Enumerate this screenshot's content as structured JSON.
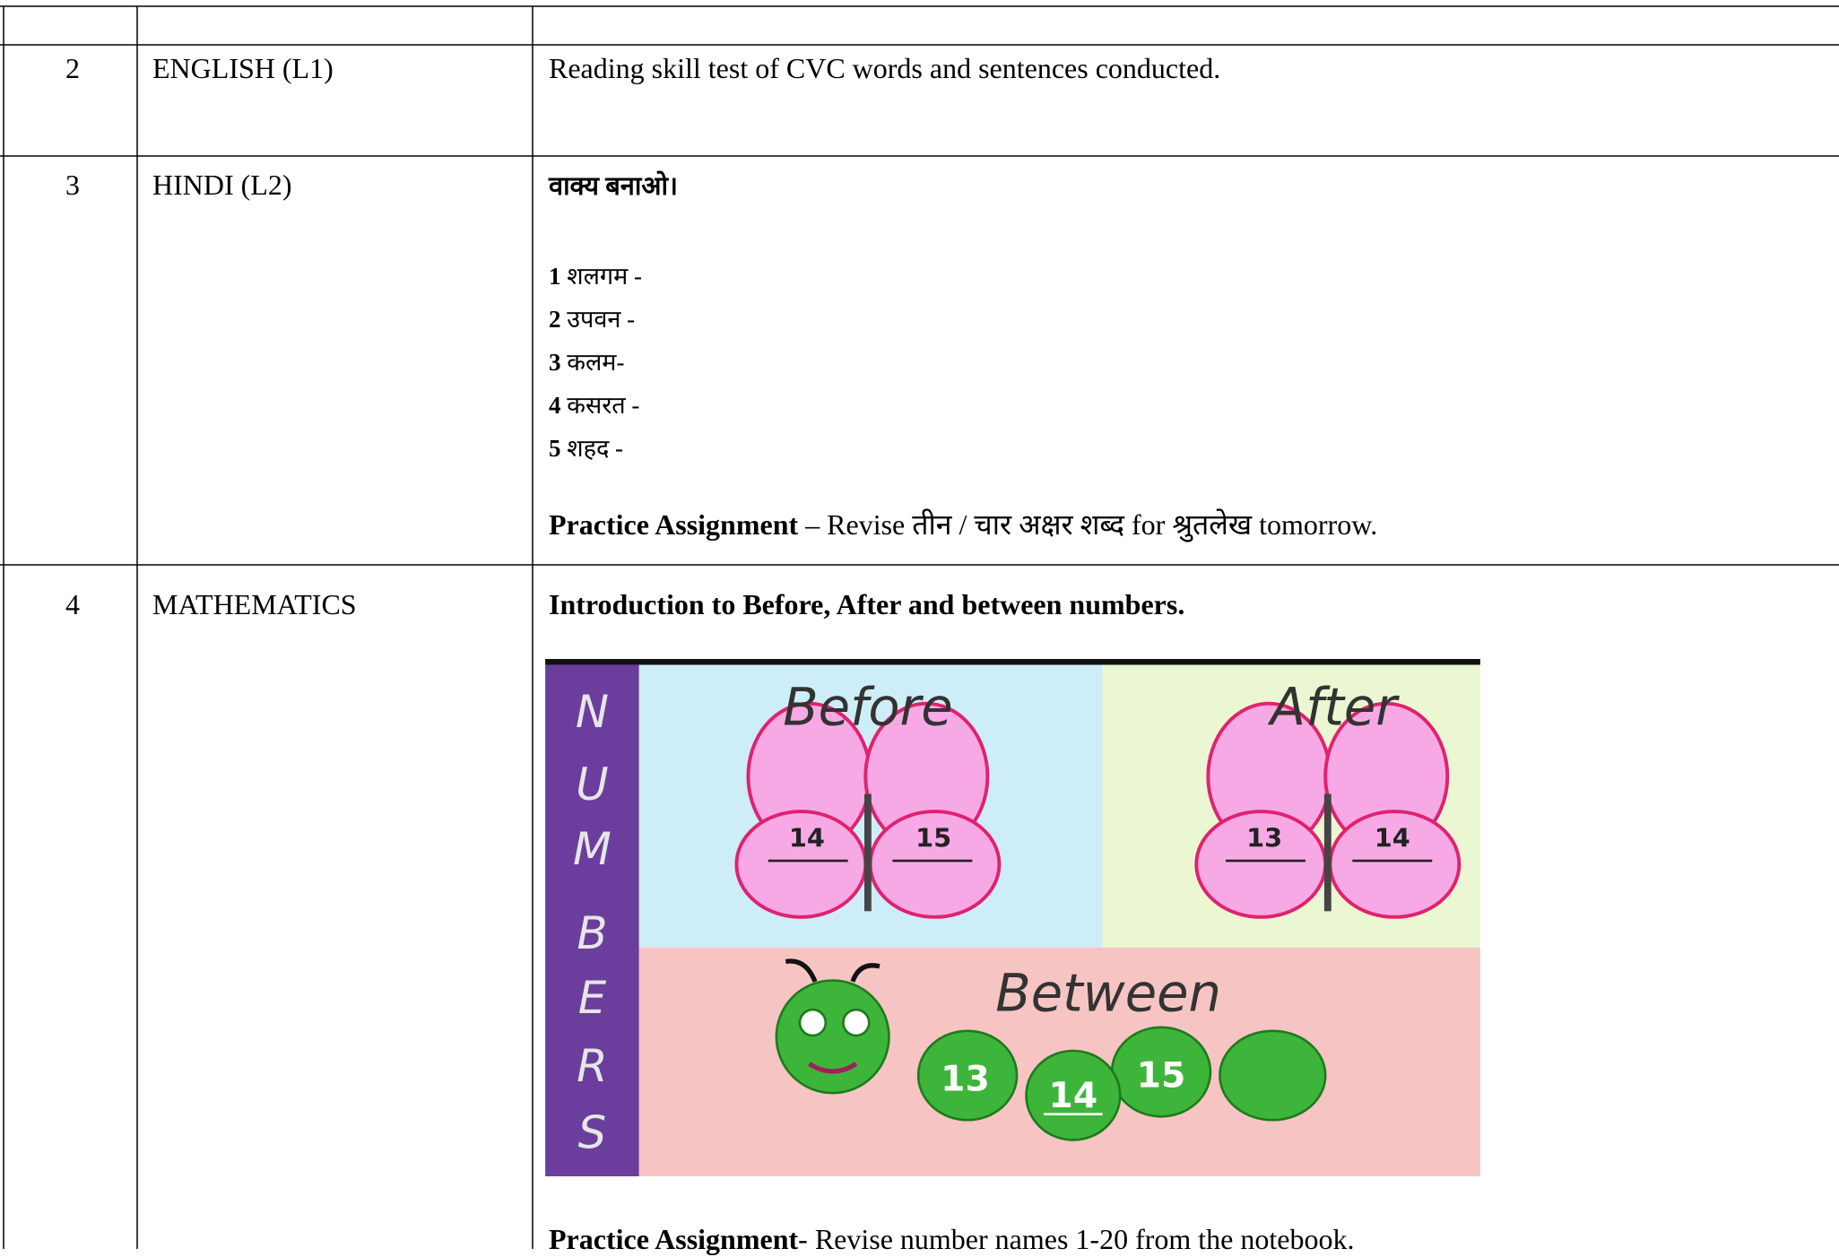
{
  "table": {
    "rows": [
      {
        "no": "2",
        "subject": "ENGLISH (L1)",
        "content": "Reading skill test of CVC words and sentences conducted."
      },
      {
        "no": "3",
        "subject": "HINDI (L2)",
        "heading": "वाक्य बनाओ।",
        "items": [
          {
            "num": "1",
            "word": "शलगम -"
          },
          {
            "num": "2",
            "word": "उपवन -"
          },
          {
            "num": "3",
            "word": "कलम-"
          },
          {
            "num": "4",
            "word": "कसरत -"
          },
          {
            "num": "5",
            "word": "शहद -"
          }
        ],
        "assignment": {
          "label": "Practice Assignment",
          "text": "– Revise तीन / चार अक्षर शब्द for श्रुतलेख tomorrow."
        }
      },
      {
        "no": "4",
        "subject": "MATHEMATICS",
        "heading": "Introduction to Before, After and between numbers.",
        "image": {
          "side_letters": [
            "N",
            "U",
            "M",
            "B",
            "E",
            "R",
            "S"
          ],
          "before": "Before",
          "after": "After",
          "between": "Between",
          "before_numbers": [
            "14",
            "15"
          ],
          "after_numbers": [
            "13",
            "14"
          ],
          "between_numbers": [
            "13",
            "14",
            "15"
          ]
        },
        "assignment": {
          "label": "Practice Assignment",
          "text": "- Revise number names 1-20 from the notebook."
        }
      }
    ]
  }
}
